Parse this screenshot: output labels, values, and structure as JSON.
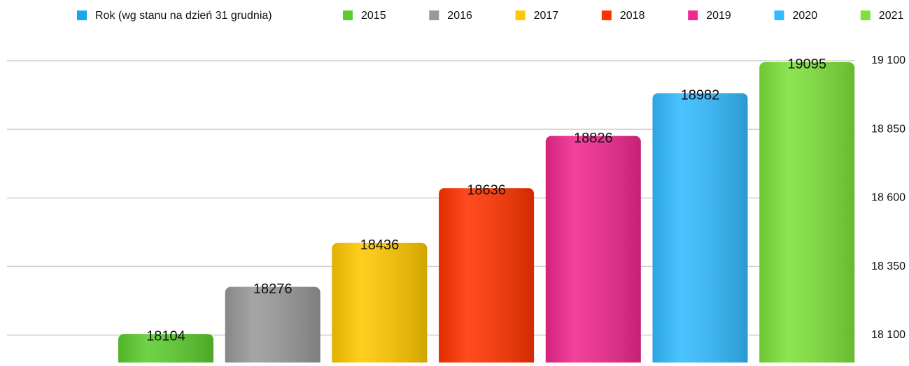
{
  "chart_data": {
    "type": "bar",
    "series_name": "Rok (wg stanu na dzień 31 grudnia)",
    "series_color": "#1aa6ef",
    "categories": [
      "2015",
      "2016",
      "2017",
      "2018",
      "2019",
      "2020",
      "2021"
    ],
    "colors": [
      "#5ccc2e",
      "#999999",
      "#ffc800",
      "#ff3300",
      "#f0288f",
      "#33bbff",
      "#7ee13a"
    ],
    "values": [
      18104,
      18276,
      18436,
      18636,
      18826,
      18982,
      19095
    ],
    "ylim": [
      18000,
      19100
    ],
    "yticks": [
      {
        "value": 18100,
        "label": "18 100"
      },
      {
        "value": 18350,
        "label": "18 350"
      },
      {
        "value": 18600,
        "label": "18 600"
      },
      {
        "value": 18850,
        "label": "18 850"
      },
      {
        "value": 19100,
        "label": "19 100"
      }
    ],
    "grid": true
  }
}
